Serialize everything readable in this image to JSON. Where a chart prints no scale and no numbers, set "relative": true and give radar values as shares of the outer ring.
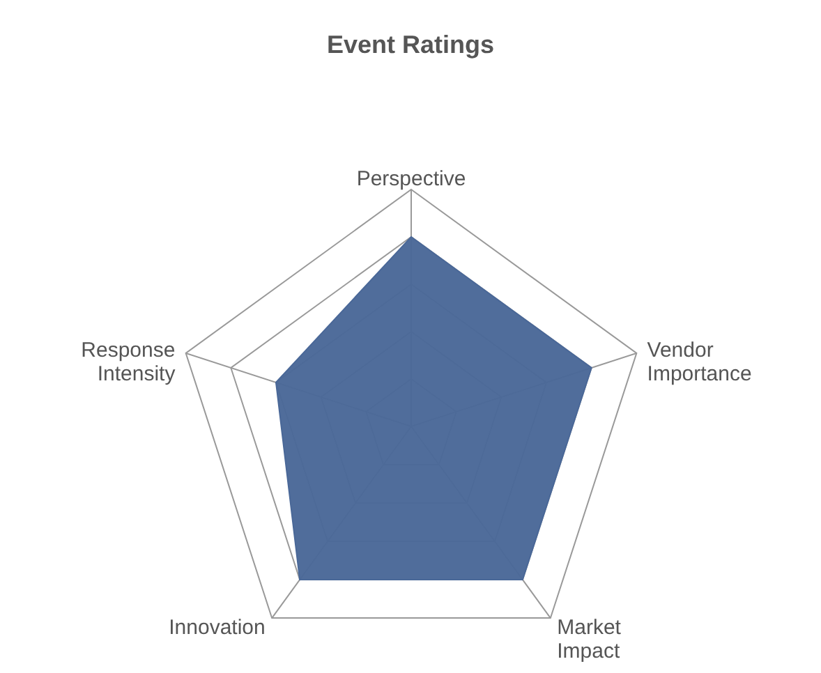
{
  "chart_data": {
    "type": "radar",
    "title": "Event Ratings",
    "categories": [
      "Perspective",
      "Vendor Importance",
      "Market Impact",
      "Innovation",
      "Response Intensity"
    ],
    "series": [
      {
        "color": "#4a6898",
        "values": [
          0.8,
          0.8,
          0.8,
          0.8,
          0.6
        ]
      }
    ],
    "relative": true,
    "grid": true
  }
}
